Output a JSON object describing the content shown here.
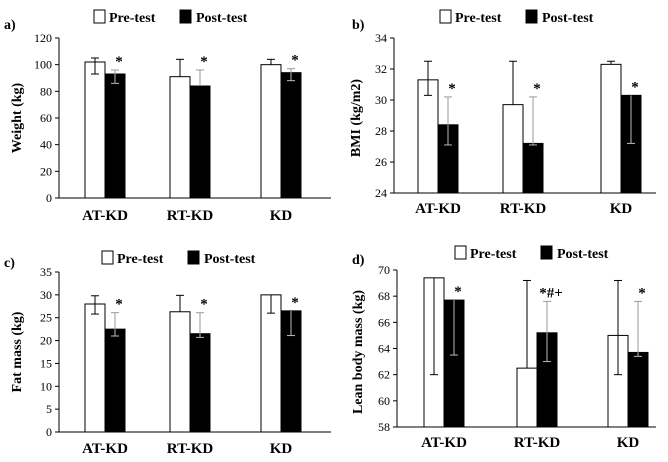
{
  "chart_data": [
    {
      "type": "bar",
      "panel_label": "a)",
      "ylabel": "Weight (kg)",
      "ylim": [
        0,
        120
      ],
      "yticks": [
        0,
        20,
        40,
        60,
        80,
        100,
        120
      ],
      "categories": [
        "AT-KD",
        "RT-KD",
        "KD"
      ],
      "series": [
        {
          "name": "Pre-test",
          "values": [
            102,
            91,
            100
          ],
          "err_hi": [
            3,
            13,
            4
          ],
          "err_lo": [
            9,
            0,
            0
          ]
        },
        {
          "name": "Post-test",
          "values": [
            93,
            84,
            94
          ],
          "err_hi": [
            3,
            12,
            3
          ],
          "err_lo": [
            7,
            0,
            6
          ]
        }
      ],
      "annotations": [
        "*",
        "*",
        "*"
      ]
    },
    {
      "type": "bar",
      "panel_label": "b)",
      "ylabel": "BMI (kg/m2)",
      "ylim": [
        24,
        34
      ],
      "yticks": [
        24,
        26,
        28,
        30,
        32,
        34
      ],
      "categories": [
        "AT-KD",
        "RT-KD",
        "KD"
      ],
      "series": [
        {
          "name": "Pre-test",
          "values": [
            31.3,
            29.7,
            32.3
          ],
          "err_hi": [
            1.2,
            2.8,
            0.2
          ],
          "err_lo": [
            1.0,
            0,
            0
          ]
        },
        {
          "name": "Post-test",
          "values": [
            28.4,
            27.2,
            30.3
          ],
          "err_hi": [
            1.8,
            3.0,
            0
          ],
          "err_lo": [
            1.3,
            0.1,
            3.1
          ]
        }
      ],
      "annotations": [
        "*",
        "*",
        "*"
      ]
    },
    {
      "type": "bar",
      "panel_label": "c)",
      "ylabel": "Fat mass (kg)",
      "ylim": [
        0,
        35
      ],
      "yticks": [
        0,
        5,
        10,
        15,
        20,
        25,
        30,
        35
      ],
      "categories": [
        "AT-KD",
        "RT-KD",
        "KD"
      ],
      "series": [
        {
          "name": "Pre-test",
          "values": [
            28.0,
            26.3,
            30.0
          ],
          "err_hi": [
            1.8,
            3.6,
            0
          ],
          "err_lo": [
            2.2,
            0,
            4.0
          ]
        },
        {
          "name": "Post-test",
          "values": [
            22.5,
            21.5,
            26.5
          ],
          "err_hi": [
            3.6,
            4.6,
            0
          ],
          "err_lo": [
            1.5,
            0.8,
            5.4
          ]
        }
      ],
      "annotations": [
        "*",
        "*",
        "*"
      ]
    },
    {
      "type": "bar",
      "panel_label": "d)",
      "ylabel": "Lean body mass (kg)",
      "ylim": [
        58,
        70
      ],
      "yticks": [
        58,
        60,
        62,
        64,
        66,
        68,
        70
      ],
      "categories": [
        "AT-KD",
        "RT-KD",
        "KD"
      ],
      "series": [
        {
          "name": "Pre-test",
          "values": [
            69.4,
            62.5,
            65.0
          ],
          "err_hi": [
            0,
            6.7,
            4.2
          ],
          "err_lo": [
            7.4,
            0,
            3.0
          ]
        },
        {
          "name": "Post-test",
          "values": [
            67.7,
            65.2,
            63.7
          ],
          "err_hi": [
            0,
            2.4,
            3.9
          ],
          "err_lo": [
            4.2,
            2.2,
            0.3
          ]
        }
      ],
      "annotations": [
        "*",
        "*#+",
        "*"
      ]
    }
  ]
}
